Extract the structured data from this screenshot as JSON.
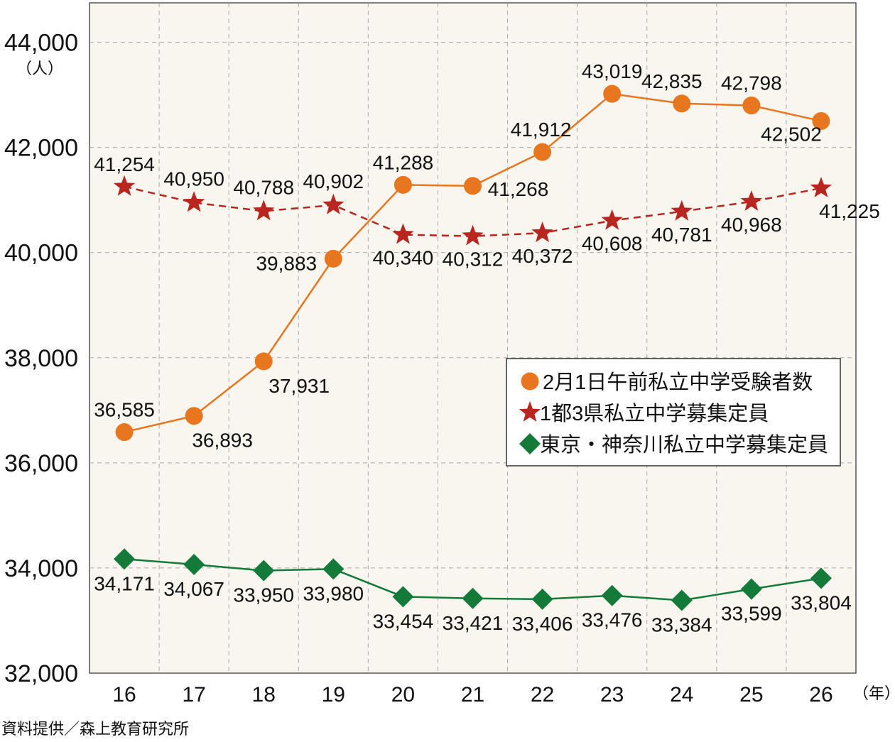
{
  "chart_data": {
    "type": "line",
    "ylabel": "（人）",
    "xlabel": "（年）",
    "source": "資料提供／森上教育研究所",
    "ylim": [
      32000,
      44750
    ],
    "yticks": [
      32000,
      34000,
      36000,
      38000,
      40000,
      42000,
      44000
    ],
    "ytick_labels": [
      "32,000",
      "34,000",
      "36,000",
      "38,000",
      "40,000",
      "42,000",
      "44,000"
    ],
    "categories": [
      "16",
      "17",
      "18",
      "19",
      "20",
      "21",
      "22",
      "23",
      "24",
      "25",
      "26"
    ],
    "grid": true,
    "legend_position": "right-middle",
    "series": [
      {
        "name": "2月1日午前私立中学受験者数",
        "marker": "circle",
        "line": "solid",
        "color": "#e8761e",
        "values": [
          36585,
          36893,
          37931,
          39883,
          41288,
          41268,
          41912,
          43019,
          42835,
          42798,
          42502
        ],
        "labels": [
          "36,585",
          "36,893",
          "37,931",
          "39,883",
          "41,288",
          "41,268",
          "41,912",
          "43,019",
          "42,835",
          "42,798",
          "42,502"
        ]
      },
      {
        "name": "1都3県私立中学募集定員",
        "marker": "star",
        "line": "dashed",
        "color": "#b8261f",
        "values": [
          41254,
          40950,
          40788,
          40902,
          40340,
          40312,
          40372,
          40608,
          40781,
          40968,
          41225
        ],
        "labels": [
          "41,254",
          "40,950",
          "40,788",
          "40,902",
          "40,340",
          "40,312",
          "40,372",
          "40,608",
          "40,781",
          "40,968",
          "41,225"
        ]
      },
      {
        "name": "東京・神奈川私立中学募集定員",
        "marker": "diamond",
        "line": "solid",
        "color": "#137a3a",
        "values": [
          34171,
          34067,
          33950,
          33980,
          33454,
          33421,
          33406,
          33476,
          33384,
          33599,
          33804
        ],
        "labels": [
          "34,171",
          "34,067",
          "33,950",
          "33,980",
          "33,454",
          "33,421",
          "33,406",
          "33,476",
          "33,384",
          "33,599",
          "33,804"
        ]
      }
    ],
    "background_color": "#f9f5ef"
  }
}
